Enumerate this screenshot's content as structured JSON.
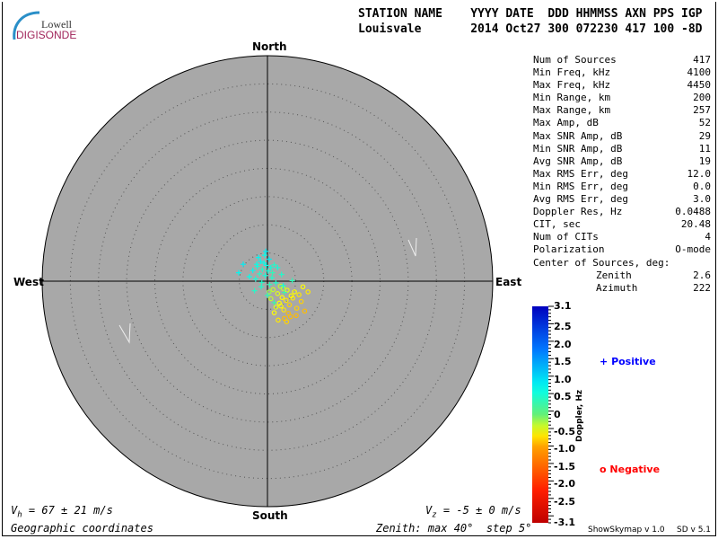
{
  "header": {
    "labels": "STATION NAME    YYYY DATE  DDD HHMMSS AXN PPS IGP",
    "values": "Louisvale       2014 Oct27 300 072230 417 100 -8D"
  },
  "logo": {
    "line1": "Lowell",
    "line2": "DIGISONDE"
  },
  "stats": [
    {
      "label": "Num of Sources",
      "value": "417"
    },
    {
      "label": "Min Freq, kHz",
      "value": "4100"
    },
    {
      "label": "Max Freq, kHz",
      "value": "4450"
    },
    {
      "label": "Min Range, km",
      "value": "200"
    },
    {
      "label": "Max Range, km",
      "value": "257"
    },
    {
      "label": "Max Amp, dB",
      "value": "52"
    },
    {
      "label": "Max SNR Amp, dB",
      "value": "29"
    },
    {
      "label": "Min SNR Amp, dB",
      "value": "11"
    },
    {
      "label": "Avg SNR Amp, dB",
      "value": "19"
    },
    {
      "label": "Max RMS Err, deg",
      "value": "12.0"
    },
    {
      "label": "Min RMS Err, deg",
      "value": "0.0"
    },
    {
      "label": "Avg RMS Err, deg",
      "value": "3.0"
    },
    {
      "label": "Doppler Res, Hz",
      "value": "0.0488"
    },
    {
      "label": "CIT, sec",
      "value": "20.48"
    },
    {
      "label": "Num of CITs",
      "value": "4"
    },
    {
      "label": "Polarization",
      "value": "O-mode"
    }
  ],
  "center": {
    "title": "Center of Sources, deg:",
    "zenith_label": "Zenith",
    "zenith": "2.6",
    "azimuth_label": "Azimuth",
    "azimuth": "222"
  },
  "compass": {
    "north": "North",
    "south": "South",
    "east": "East",
    "west": "West"
  },
  "footer": {
    "vh": "67 ± 21 m/s",
    "vz": "-5 ± 0 m/s",
    "coords": "Geographic coordinates",
    "zenith_info": "Zenith: max 40°  step 5°",
    "version1": "ShowSkymap v 1.0",
    "version2": "SD v 5.1"
  },
  "colorbar": {
    "title": "Doppler, Hz",
    "ticks": [
      "3.1",
      "2.5",
      "2.0",
      "1.5",
      "1.0",
      "0.5",
      "0",
      "-0.5",
      "-1.0",
      "-1.5",
      "-2.0",
      "-2.5",
      "-3.1"
    ],
    "min": -3.1,
    "max": 3.1
  },
  "legend": {
    "positive": "Positive",
    "negative": "Negative",
    "positive_color": "#0000ff",
    "negative_color": "#ff0000"
  },
  "chart_data": {
    "type": "scatter",
    "title": "",
    "zenith_max": 40,
    "zenith_step": 5,
    "background": "#a8a8a8",
    "points_fields": [
      "east_deg",
      "north_deg",
      "doppler_hz"
    ],
    "positive": [
      [
        -1.2,
        3.5,
        0.8
      ],
      [
        -0.5,
        4.6,
        0.7
      ],
      [
        0.3,
        3.9,
        0.9
      ],
      [
        -1.8,
        2.6,
        0.6
      ],
      [
        -0.9,
        2.1,
        0.5
      ],
      [
        -0.2,
        2.8,
        0.7
      ],
      [
        0.6,
        2.4,
        0.6
      ],
      [
        1.2,
        2.9,
        0.5
      ],
      [
        -2.6,
        1.9,
        0.8
      ],
      [
        -1.4,
        1.3,
        0.5
      ],
      [
        -0.4,
        1.0,
        0.6
      ],
      [
        0.9,
        1.5,
        0.4
      ],
      [
        1.8,
        2.4,
        0.6
      ],
      [
        2.5,
        1.2,
        0.5
      ],
      [
        -3.2,
        0.8,
        0.7
      ],
      [
        -2.1,
        0.4,
        0.6
      ],
      [
        -1.0,
        -0.2,
        0.5
      ],
      [
        0.4,
        -0.6,
        0.4
      ],
      [
        1.5,
        -0.3,
        0.5
      ],
      [
        2.8,
        -0.8,
        0.6
      ],
      [
        -4.3,
        3.0,
        0.9
      ],
      [
        -5.1,
        1.5,
        0.8
      ],
      [
        -0.3,
        5.3,
        0.9
      ],
      [
        -1.6,
        4.2,
        0.8
      ],
      [
        3.0,
        -2.0,
        0.3
      ],
      [
        0.0,
        -2.5,
        0.4
      ],
      [
        -1.1,
        -1.0,
        0.5
      ],
      [
        -2.3,
        -1.7,
        0.5
      ],
      [
        1.2,
        -3.8,
        0.3
      ],
      [
        4.4,
        0.1,
        0.4
      ],
      [
        -0.6,
        3.2,
        0.7
      ],
      [
        0.1,
        1.8,
        0.6
      ],
      [
        -1.9,
        3.0,
        0.7
      ],
      [
        0.8,
        0.6,
        0.5
      ]
    ],
    "negative": [
      [
        1.0,
        -1.5,
        -0.3
      ],
      [
        1.8,
        -2.2,
        -0.4
      ],
      [
        2.6,
        -2.9,
        -0.5
      ],
      [
        3.3,
        -3.4,
        -0.6
      ],
      [
        2.1,
        -3.9,
        -0.5
      ],
      [
        3.9,
        -4.2,
        -0.7
      ],
      [
        4.5,
        -3.0,
        -0.6
      ],
      [
        5.2,
        -4.8,
        -0.7
      ],
      [
        2.9,
        -5.1,
        -0.6
      ],
      [
        3.7,
        -5.7,
        -0.8
      ],
      [
        1.5,
        -4.6,
        -0.4
      ],
      [
        4.8,
        -1.9,
        -0.5
      ],
      [
        6.0,
        -3.6,
        -0.7
      ],
      [
        6.6,
        -5.3,
        -0.8
      ],
      [
        2.3,
        -0.9,
        -0.3
      ],
      [
        0.6,
        -3.1,
        -0.3
      ],
      [
        3.0,
        -6.6,
        -0.8
      ],
      [
        4.1,
        -6.3,
        -0.8
      ],
      [
        5.6,
        -2.4,
        -0.6
      ],
      [
        7.2,
        -1.9,
        -0.6
      ],
      [
        1.2,
        -5.6,
        -0.5
      ],
      [
        2.4,
        -4.4,
        -0.5
      ],
      [
        3.5,
        -1.6,
        -0.4
      ],
      [
        4.2,
        -2.6,
        -0.5
      ],
      [
        0.3,
        -1.9,
        -0.2
      ],
      [
        5.1,
        -6.1,
        -0.8
      ],
      [
        1.9,
        -6.9,
        -0.6
      ],
      [
        6.3,
        -1.0,
        -0.5
      ],
      [
        2.8,
        -1.3,
        -0.3
      ],
      [
        3.4,
        -7.2,
        -0.7
      ]
    ]
  }
}
